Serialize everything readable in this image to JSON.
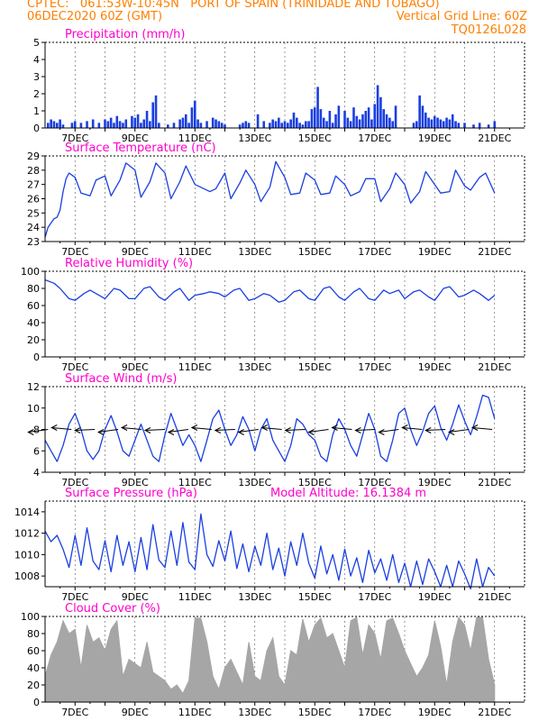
{
  "header": {
    "line1": "CPTEC:   061:53W-10:45N   PORT OF SPAIN (TRINIDADE AND TOBAGO)",
    "line2_left": "06DEC2020 60Z (GMT)",
    "line2_right": "Vertical Grid Line: 60Z",
    "line3_right": "TQ0126L028"
  },
  "colors": {
    "header": "#ff7f00",
    "title": "#ff00cc",
    "series": "#1a3fe0",
    "cloud": "#a6a6a6",
    "arrow": "#000000"
  },
  "chart_data": [
    {
      "id": "precip",
      "type": "bar",
      "title": "Precipitation (mm/h)",
      "ylim": [
        0,
        5
      ],
      "yticks": [
        0,
        1,
        2,
        3,
        4,
        5
      ],
      "xlim": [
        0,
        16
      ],
      "xticks": [
        {
          "x": 1,
          "label": "7DEC"
        },
        {
          "x": 3,
          "label": "9DEC"
        },
        {
          "x": 5,
          "label": "11DEC"
        },
        {
          "x": 7,
          "label": "13DEC"
        },
        {
          "x": 9,
          "label": "15DEC"
        },
        {
          "x": 11,
          "label": "17DEC"
        },
        {
          "x": 13,
          "label": "19DEC"
        },
        {
          "x": 15,
          "label": "21DEC"
        }
      ],
      "x": [
        0.1,
        0.2,
        0.3,
        0.4,
        0.5,
        0.6,
        0.9,
        1.0,
        1.2,
        1.4,
        1.6,
        1.8,
        2.0,
        2.1,
        2.2,
        2.3,
        2.4,
        2.5,
        2.6,
        2.7,
        2.9,
        3.0,
        3.1,
        3.2,
        3.3,
        3.4,
        3.5,
        3.6,
        3.7,
        3.8,
        4.1,
        4.3,
        4.5,
        4.6,
        4.7,
        4.8,
        4.9,
        5.0,
        5.1,
        5.2,
        5.4,
        5.6,
        5.7,
        5.8,
        5.9,
        6.0,
        6.5,
        6.6,
        6.7,
        6.8,
        7.1,
        7.3,
        7.5,
        7.6,
        7.7,
        7.8,
        7.9,
        8.0,
        8.1,
        8.2,
        8.3,
        8.4,
        8.5,
        8.6,
        8.7,
        8.8,
        8.9,
        9.0,
        9.1,
        9.2,
        9.3,
        9.4,
        9.5,
        9.6,
        9.7,
        9.8,
        10.0,
        10.1,
        10.2,
        10.3,
        10.4,
        10.5,
        10.6,
        10.7,
        10.8,
        10.9,
        11.0,
        11.1,
        11.2,
        11.3,
        11.4,
        11.5,
        11.6,
        11.7,
        12.3,
        12.4,
        12.5,
        12.6,
        12.7,
        12.8,
        12.9,
        13.0,
        13.1,
        13.2,
        13.3,
        13.4,
        13.5,
        13.6,
        13.7,
        13.8,
        14.0,
        14.3,
        14.5,
        14.8,
        15.0
      ],
      "values": [
        0.3,
        0.5,
        0.4,
        0.3,
        0.5,
        0.2,
        0.3,
        0.4,
        0.3,
        0.4,
        0.5,
        0.3,
        0.5,
        0.4,
        0.6,
        0.3,
        0.7,
        0.4,
        0.3,
        0.5,
        0.7,
        0.6,
        0.8,
        0.3,
        0.5,
        1.0,
        0.4,
        1.5,
        1.9,
        0.3,
        0.2,
        0.3,
        0.5,
        0.6,
        0.8,
        0.3,
        1.2,
        1.6,
        0.5,
        0.3,
        0.4,
        0.6,
        0.5,
        0.4,
        0.3,
        0.2,
        0.2,
        0.3,
        0.4,
        0.3,
        0.8,
        0.4,
        0.3,
        0.5,
        0.4,
        0.6,
        0.3,
        0.4,
        0.3,
        0.5,
        0.9,
        0.6,
        0.3,
        0.2,
        0.4,
        0.4,
        1.1,
        1.2,
        2.4,
        1.1,
        0.6,
        0.4,
        1.0,
        0.3,
        0.8,
        1.3,
        1.0,
        0.6,
        0.4,
        1.2,
        0.7,
        0.5,
        0.8,
        1.0,
        1.2,
        0.5,
        1.4,
        2.5,
        1.8,
        1.1,
        0.8,
        0.6,
        0.4,
        1.3,
        0.3,
        0.4,
        1.9,
        1.3,
        0.9,
        0.6,
        0.5,
        0.7,
        0.6,
        0.5,
        0.4,
        0.6,
        0.5,
        0.8,
        0.4,
        0.3,
        0.3,
        0.2,
        0.3,
        0.2,
        0.4
      ]
    },
    {
      "id": "temp",
      "type": "line",
      "title": "Surface Temperature (nC)",
      "ylim": [
        23,
        29
      ],
      "yticks": [
        23,
        24,
        25,
        26,
        27,
        28,
        29
      ],
      "xlim": [
        0,
        16
      ],
      "xticks": [
        {
          "x": 1,
          "label": "7DEC"
        },
        {
          "x": 3,
          "label": "9DEC"
        },
        {
          "x": 5,
          "label": "11DEC"
        },
        {
          "x": 7,
          "label": "13DEC"
        },
        {
          "x": 9,
          "label": "15DEC"
        },
        {
          "x": 11,
          "label": "17DEC"
        },
        {
          "x": 13,
          "label": "19DEC"
        },
        {
          "x": 15,
          "label": "21DEC"
        }
      ],
      "x": [
        0,
        0.1,
        0.2,
        0.3,
        0.4,
        0.5,
        0.6,
        0.7,
        0.8,
        1.0,
        1.2,
        1.5,
        1.7,
        2.0,
        2.2,
        2.5,
        2.7,
        3.0,
        3.2,
        3.5,
        3.7,
        4.0,
        4.2,
        4.5,
        4.7,
        5.0,
        5.2,
        5.5,
        5.7,
        6.0,
        6.2,
        6.5,
        6.7,
        7.0,
        7.2,
        7.5,
        7.7,
        8.0,
        8.2,
        8.5,
        8.7,
        9.0,
        9.2,
        9.5,
        9.7,
        10.0,
        10.2,
        10.5,
        10.7,
        11.0,
        11.2,
        11.5,
        11.7,
        12.0,
        12.2,
        12.5,
        12.7,
        13.0,
        13.2,
        13.5,
        13.7,
        14.0,
        14.2,
        14.5,
        14.7,
        15.0
      ],
      "values": [
        23.3,
        24.0,
        24.3,
        24.6,
        24.7,
        25.2,
        26.5,
        27.4,
        27.8,
        27.5,
        26.4,
        26.2,
        27.3,
        27.6,
        26.2,
        27.3,
        28.5,
        28.0,
        26.1,
        27.2,
        28.5,
        27.8,
        26.0,
        27.2,
        28.3,
        27.0,
        26.8,
        26.5,
        26.7,
        27.8,
        26.0,
        27.1,
        28.0,
        27.0,
        25.8,
        26.8,
        28.6,
        27.5,
        26.3,
        26.4,
        27.8,
        27.3,
        26.3,
        26.4,
        27.6,
        27.0,
        26.2,
        26.5,
        27.4,
        27.4,
        25.8,
        26.7,
        27.8,
        27.0,
        25.7,
        26.5,
        27.9,
        27.0,
        26.4,
        26.5,
        28.0,
        26.9,
        26.6,
        27.5,
        27.8,
        26.4
      ]
    },
    {
      "id": "rh",
      "type": "line",
      "title": "Relative Humidity (%)",
      "ylim": [
        0,
        100
      ],
      "yticks": [
        0,
        20,
        40,
        60,
        80,
        100
      ],
      "xlim": [
        0,
        16
      ],
      "xticks": [
        {
          "x": 1,
          "label": "7DEC"
        },
        {
          "x": 3,
          "label": "9DEC"
        },
        {
          "x": 5,
          "label": "11DEC"
        },
        {
          "x": 7,
          "label": "13DEC"
        },
        {
          "x": 9,
          "label": "15DEC"
        },
        {
          "x": 11,
          "label": "17DEC"
        },
        {
          "x": 13,
          "label": "19DEC"
        },
        {
          "x": 15,
          "label": "21DEC"
        }
      ],
      "x": [
        0,
        0.3,
        0.5,
        0.8,
        1.0,
        1.3,
        1.5,
        1.8,
        2.0,
        2.3,
        2.5,
        2.8,
        3.0,
        3.3,
        3.5,
        3.8,
        4.0,
        4.3,
        4.5,
        4.8,
        5.0,
        5.3,
        5.5,
        5.8,
        6.0,
        6.3,
        6.5,
        6.8,
        7.0,
        7.3,
        7.5,
        7.8,
        8.0,
        8.3,
        8.5,
        8.8,
        9.0,
        9.3,
        9.5,
        9.8,
        10.0,
        10.3,
        10.5,
        10.8,
        11.0,
        11.3,
        11.5,
        11.8,
        12.0,
        12.3,
        12.5,
        12.8,
        13.0,
        13.3,
        13.5,
        13.8,
        14.0,
        14.3,
        14.5,
        14.8,
        15.0
      ],
      "values": [
        90,
        86,
        80,
        68,
        66,
        74,
        78,
        72,
        68,
        80,
        78,
        68,
        68,
        80,
        82,
        70,
        66,
        76,
        80,
        66,
        72,
        74,
        76,
        74,
        70,
        78,
        80,
        66,
        68,
        74,
        72,
        64,
        66,
        76,
        78,
        68,
        66,
        80,
        82,
        70,
        66,
        76,
        80,
        68,
        66,
        78,
        74,
        78,
        68,
        76,
        78,
        70,
        66,
        80,
        82,
        70,
        72,
        78,
        74,
        66,
        72
      ]
    },
    {
      "id": "wind",
      "type": "line",
      "title": "Surface Wind (m/s)",
      "ylim": [
        4,
        12
      ],
      "yticks": [
        4,
        6,
        8,
        10,
        12
      ],
      "xlim": [
        0,
        16
      ],
      "xticks": [
        {
          "x": 1,
          "label": "7DEC"
        },
        {
          "x": 3,
          "label": "9DEC"
        },
        {
          "x": 5,
          "label": "11DEC"
        },
        {
          "x": 7,
          "label": "13DEC"
        },
        {
          "x": 9,
          "label": "15DEC"
        },
        {
          "x": 11,
          "label": "17DEC"
        },
        {
          "x": 13,
          "label": "19DEC"
        },
        {
          "x": 15,
          "label": "21DEC"
        }
      ],
      "x": [
        0,
        0.2,
        0.4,
        0.6,
        0.8,
        1.0,
        1.2,
        1.4,
        1.6,
        1.8,
        2.0,
        2.2,
        2.4,
        2.6,
        2.8,
        3.0,
        3.2,
        3.4,
        3.6,
        3.8,
        4.0,
        4.2,
        4.4,
        4.6,
        4.8,
        5.0,
        5.2,
        5.4,
        5.6,
        5.8,
        6.0,
        6.2,
        6.4,
        6.6,
        6.8,
        7.0,
        7.2,
        7.4,
        7.6,
        7.8,
        8.0,
        8.2,
        8.4,
        8.6,
        8.8,
        9.0,
        9.2,
        9.4,
        9.6,
        9.8,
        10.0,
        10.2,
        10.4,
        10.6,
        10.8,
        11.0,
        11.2,
        11.4,
        11.6,
        11.8,
        12.0,
        12.2,
        12.4,
        12.6,
        12.8,
        13.0,
        13.2,
        13.4,
        13.6,
        13.8,
        14.0,
        14.2,
        14.4,
        14.6,
        14.8,
        15.0
      ],
      "values": [
        7.0,
        6.0,
        5.0,
        6.5,
        8.5,
        9.5,
        8.0,
        6.0,
        5.2,
        6.0,
        8.0,
        9.3,
        7.8,
        6.0,
        5.5,
        7.0,
        8.5,
        7.0,
        5.5,
        5.0,
        7.5,
        9.5,
        8.0,
        6.5,
        7.5,
        6.5,
        5.0,
        7.0,
        9.0,
        9.8,
        8.0,
        6.5,
        7.5,
        9.2,
        8.0,
        6.0,
        8.0,
        9.0,
        7.0,
        6.0,
        5.0,
        6.5,
        9.0,
        8.5,
        7.5,
        7.0,
        5.5,
        5.0,
        7.5,
        9.0,
        8.0,
        6.5,
        5.5,
        7.5,
        9.5,
        8.0,
        5.5,
        5.0,
        7.0,
        9.5,
        10.0,
        8.0,
        6.5,
        7.8,
        9.5,
        10.2,
        8.2,
        7.0,
        8.5,
        10.3,
        8.8,
        7.5,
        9.2,
        11.2,
        11.0,
        9.0
      ]
    },
    {
      "id": "pressure",
      "type": "line",
      "title": "Surface Pressure (hPa)",
      "annotation": "Model Altitude: 16.1384 m",
      "ylim": [
        1007,
        1015
      ],
      "yticks": [
        1008,
        1010,
        1012,
        1014
      ],
      "xlim": [
        0,
        16
      ],
      "xticks": [
        {
          "x": 1,
          "label": "7DEC"
        },
        {
          "x": 3,
          "label": "9DEC"
        },
        {
          "x": 5,
          "label": "11DEC"
        },
        {
          "x": 7,
          "label": "13DEC"
        },
        {
          "x": 9,
          "label": "15DEC"
        },
        {
          "x": 11,
          "label": "17DEC"
        },
        {
          "x": 13,
          "label": "19DEC"
        },
        {
          "x": 15,
          "label": "21DEC"
        }
      ],
      "x": [
        0,
        0.2,
        0.4,
        0.6,
        0.8,
        1.0,
        1.2,
        1.4,
        1.6,
        1.8,
        2.0,
        2.2,
        2.4,
        2.6,
        2.8,
        3.0,
        3.2,
        3.4,
        3.6,
        3.8,
        4.0,
        4.2,
        4.4,
        4.6,
        4.8,
        5.0,
        5.2,
        5.4,
        5.6,
        5.8,
        6.0,
        6.2,
        6.4,
        6.6,
        6.8,
        7.0,
        7.2,
        7.4,
        7.6,
        7.8,
        8.0,
        8.2,
        8.4,
        8.6,
        8.8,
        9.0,
        9.2,
        9.4,
        9.6,
        9.8,
        10.0,
        10.2,
        10.4,
        10.6,
        10.8,
        11.0,
        11.2,
        11.4,
        11.6,
        11.8,
        12.0,
        12.2,
        12.4,
        12.6,
        12.8,
        13.0,
        13.2,
        13.4,
        13.6,
        13.8,
        14.0,
        14.2,
        14.4,
        14.6,
        14.8,
        15.0
      ],
      "values": [
        1012.2,
        1011.2,
        1011.8,
        1010.5,
        1008.8,
        1011.8,
        1009.0,
        1012.5,
        1009.4,
        1008.6,
        1011.3,
        1008.4,
        1011.8,
        1009.0,
        1011.2,
        1008.4,
        1011.6,
        1008.6,
        1012.8,
        1009.5,
        1008.8,
        1012.2,
        1009.0,
        1013.0,
        1009.3,
        1008.6,
        1013.8,
        1010.0,
        1008.9,
        1011.3,
        1009.4,
        1012.2,
        1008.7,
        1011.0,
        1008.4,
        1010.8,
        1009.0,
        1012.0,
        1008.6,
        1010.6,
        1008.0,
        1011.2,
        1009.0,
        1012.0,
        1009.2,
        1007.8,
        1010.8,
        1008.2,
        1010.0,
        1007.6,
        1010.5,
        1008.0,
        1009.7,
        1007.4,
        1010.4,
        1008.3,
        1009.6,
        1007.6,
        1010.0,
        1007.4,
        1009.2,
        1007.0,
        1009.4,
        1007.2,
        1009.6,
        1008.4,
        1007.0,
        1009.0,
        1007.0,
        1009.4,
        1008.2,
        1006.8,
        1009.6,
        1007.0,
        1008.8,
        1008.0
      ]
    },
    {
      "id": "cloud",
      "type": "area",
      "title": "Cloud Cover (%)",
      "ylim": [
        0,
        100
      ],
      "yticks": [
        0,
        20,
        40,
        60,
        80,
        100
      ],
      "xlim": [
        0,
        16
      ],
      "xticks": [
        {
          "x": 1,
          "label": "7DEC"
        },
        {
          "x": 3,
          "label": "9DEC"
        },
        {
          "x": 5,
          "label": "11DEC"
        },
        {
          "x": 7,
          "label": "13DEC"
        },
        {
          "x": 9,
          "label": "15DEC"
        },
        {
          "x": 11,
          "label": "17DEC"
        },
        {
          "x": 13,
          "label": "19DEC"
        },
        {
          "x": 15,
          "label": "21DEC"
        }
      ],
      "x": [
        0,
        0.2,
        0.4,
        0.6,
        0.8,
        1.0,
        1.2,
        1.4,
        1.6,
        1.8,
        2.0,
        2.2,
        2.4,
        2.6,
        2.8,
        3.0,
        3.2,
        3.4,
        3.6,
        3.8,
        4.0,
        4.2,
        4.4,
        4.6,
        4.8,
        5.0,
        5.2,
        5.4,
        5.6,
        5.8,
        6.0,
        6.2,
        6.4,
        6.6,
        6.8,
        7.0,
        7.2,
        7.4,
        7.6,
        7.8,
        8.0,
        8.2,
        8.4,
        8.6,
        8.8,
        9.0,
        9.2,
        9.4,
        9.6,
        9.8,
        10.0,
        10.2,
        10.4,
        10.6,
        10.8,
        11.0,
        11.2,
        11.4,
        11.6,
        11.8,
        12.0,
        12.2,
        12.4,
        12.6,
        12.8,
        13.0,
        13.2,
        13.4,
        13.6,
        13.8,
        14.0,
        14.2,
        14.4,
        14.6,
        14.8,
        15.0
      ],
      "values": [
        30,
        55,
        70,
        95,
        80,
        85,
        40,
        90,
        70,
        75,
        60,
        85,
        95,
        30,
        50,
        45,
        40,
        70,
        35,
        30,
        25,
        15,
        20,
        10,
        25,
        98,
        98,
        70,
        30,
        15,
        40,
        50,
        35,
        20,
        70,
        30,
        25,
        60,
        75,
        30,
        20,
        60,
        55,
        97,
        70,
        90,
        98,
        75,
        80,
        60,
        40,
        95,
        99,
        55,
        90,
        80,
        50,
        95,
        98,
        80,
        60,
        45,
        30,
        40,
        55,
        95,
        65,
        20,
        70,
        99,
        90,
        60,
        99,
        99,
        50,
        20
      ]
    }
  ]
}
